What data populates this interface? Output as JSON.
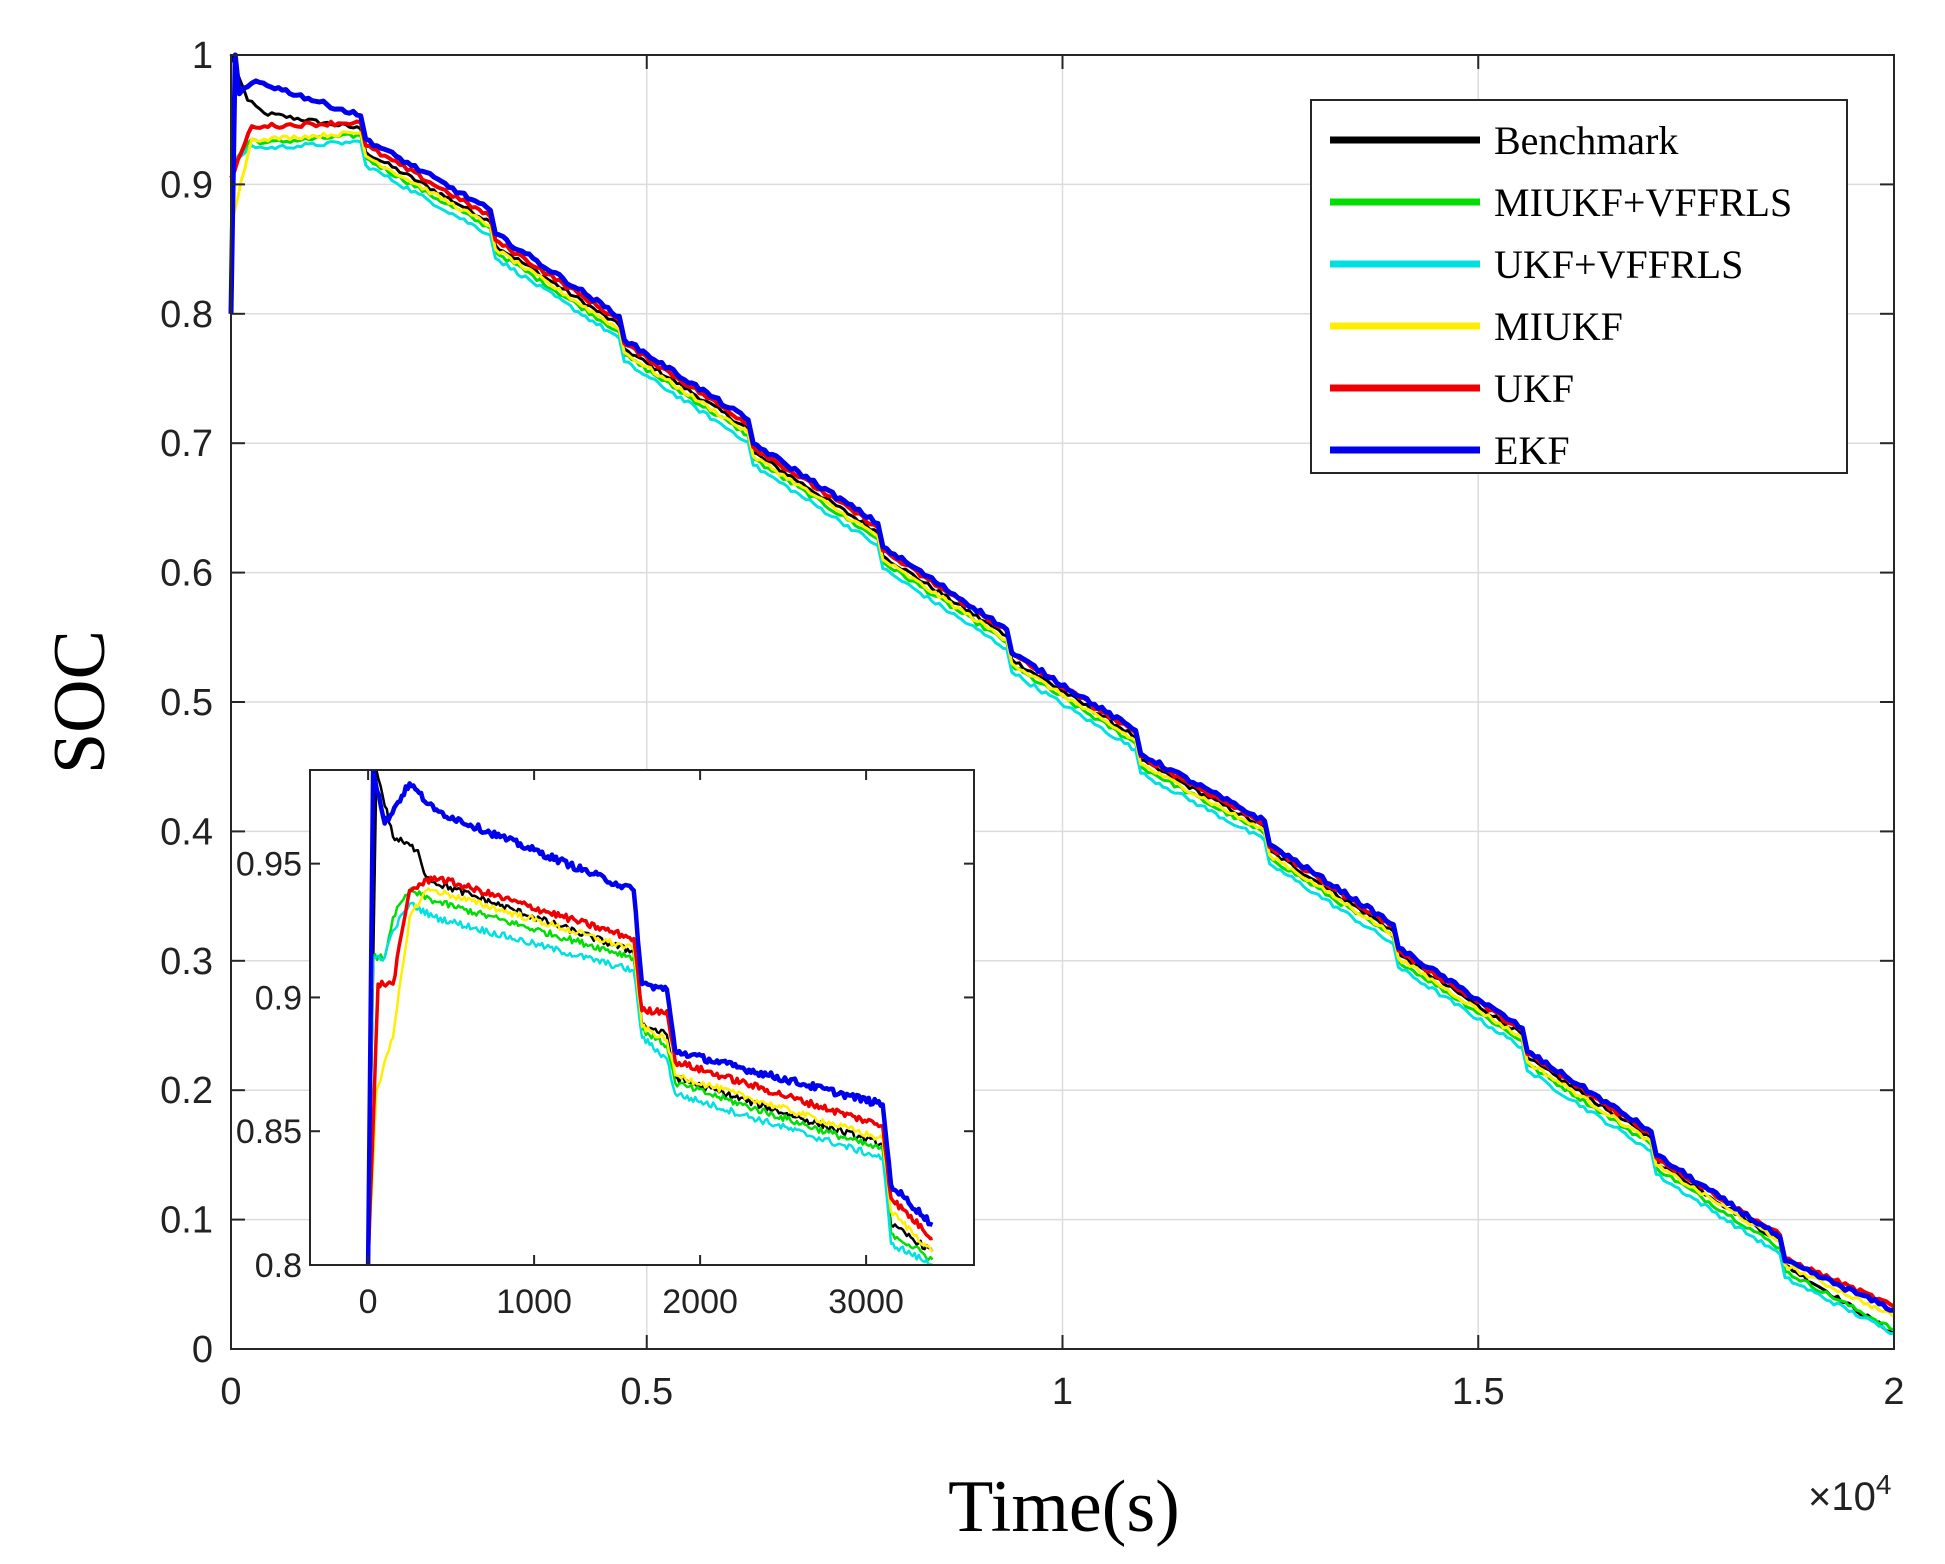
{
  "chart_data": {
    "type": "line",
    "title": "",
    "xlabel": "Time(s)",
    "ylabel": "SOC",
    "x_exponent_label": "×10",
    "x_exponent_power": "4",
    "xlim": [
      0,
      20000
    ],
    "ylim": [
      0,
      1
    ],
    "x_ticks": [
      0,
      5000,
      10000,
      15000,
      20000
    ],
    "x_tick_labels": [
      "0",
      "0.5",
      "1",
      "1.5",
      "2"
    ],
    "y_ticks": [
      0,
      0.1,
      0.2,
      0.3,
      0.4,
      0.5,
      0.6,
      0.7,
      0.8,
      0.9,
      1.0
    ],
    "y_tick_labels": [
      "0",
      "0.1",
      "0.2",
      "0.3",
      "0.4",
      "0.5",
      "0.6",
      "0.7",
      "0.8",
      "0.9",
      "1"
    ],
    "grid": true,
    "legend_position": "top-right",
    "pulse_start_times": [
      1620,
      3180,
      4730,
      6280,
      7840,
      9390,
      10940,
      12490,
      14040,
      15590,
      17140,
      18690
    ],
    "series": [
      {
        "name": "Benchmark",
        "color": "#000000",
        "points": [
          [
            0,
            1.0
          ],
          [
            200,
            0.965
          ],
          [
            400,
            0.955
          ],
          [
            1620,
            0.925
          ],
          [
            3180,
            0.853
          ],
          [
            4730,
            0.773
          ],
          [
            6280,
            0.693
          ],
          [
            7840,
            0.613
          ],
          [
            9390,
            0.533
          ],
          [
            10940,
            0.455
          ],
          [
            12490,
            0.385
          ],
          [
            14040,
            0.305
          ],
          [
            15590,
            0.225
          ],
          [
            17140,
            0.145
          ],
          [
            18690,
            0.065
          ],
          [
            20000,
            0.012
          ]
        ]
      },
      {
        "name": "MIUKF+VFFRLS",
        "color": "#00dd00",
        "points": [
          [
            0,
            0.915
          ],
          [
            250,
            0.935
          ],
          [
            400,
            0.932
          ],
          [
            1620,
            0.92
          ],
          [
            3180,
            0.848
          ],
          [
            4730,
            0.768
          ],
          [
            6280,
            0.688
          ],
          [
            7840,
            0.608
          ],
          [
            9390,
            0.528
          ],
          [
            10940,
            0.45
          ],
          [
            12490,
            0.38
          ],
          [
            14040,
            0.3
          ],
          [
            15590,
            0.22
          ],
          [
            17140,
            0.14
          ],
          [
            18690,
            0.06
          ],
          [
            20000,
            0.015
          ]
        ]
      },
      {
        "name": "UKF+VFFRLS",
        "color": "#00e0e0",
        "points": [
          [
            0,
            0.915
          ],
          [
            250,
            0.93
          ],
          [
            400,
            0.928
          ],
          [
            1620,
            0.915
          ],
          [
            3180,
            0.843
          ],
          [
            4730,
            0.763
          ],
          [
            6280,
            0.683
          ],
          [
            7840,
            0.603
          ],
          [
            9390,
            0.523
          ],
          [
            10940,
            0.445
          ],
          [
            12490,
            0.375
          ],
          [
            14040,
            0.295
          ],
          [
            15590,
            0.215
          ],
          [
            17140,
            0.135
          ],
          [
            18690,
            0.055
          ],
          [
            20000,
            0.012
          ]
        ]
      },
      {
        "name": "MIUKF",
        "color": "#ffee00",
        "points": [
          [
            0,
            0.87
          ],
          [
            250,
            0.935
          ],
          [
            400,
            0.935
          ],
          [
            1620,
            0.922
          ],
          [
            3180,
            0.85
          ],
          [
            4730,
            0.77
          ],
          [
            6280,
            0.69
          ],
          [
            7840,
            0.61
          ],
          [
            9390,
            0.53
          ],
          [
            10940,
            0.452
          ],
          [
            12490,
            0.382
          ],
          [
            14040,
            0.302
          ],
          [
            15590,
            0.222
          ],
          [
            17140,
            0.142
          ],
          [
            18690,
            0.065
          ],
          [
            20000,
            0.025
          ]
        ]
      },
      {
        "name": "UKF",
        "color": "#ee0000",
        "points": [
          [
            0,
            0.905
          ],
          [
            250,
            0.945
          ],
          [
            400,
            0.945
          ],
          [
            1620,
            0.93
          ],
          [
            3180,
            0.857
          ],
          [
            4730,
            0.777
          ],
          [
            6280,
            0.697
          ],
          [
            7840,
            0.617
          ],
          [
            9390,
            0.537
          ],
          [
            10940,
            0.458
          ],
          [
            12490,
            0.388
          ],
          [
            14040,
            0.308
          ],
          [
            15590,
            0.228
          ],
          [
            17140,
            0.148
          ],
          [
            18690,
            0.07
          ],
          [
            20000,
            0.033
          ]
        ]
      },
      {
        "name": "EKF",
        "color": "#0000ee",
        "points": [
          [
            0,
            0.8
          ],
          [
            50,
            1.0
          ],
          [
            100,
            0.97
          ],
          [
            300,
            0.98
          ],
          [
            1620,
            0.935
          ],
          [
            3180,
            0.862
          ],
          [
            4730,
            0.78
          ],
          [
            6280,
            0.7
          ],
          [
            7840,
            0.62
          ],
          [
            9390,
            0.538
          ],
          [
            10940,
            0.46
          ],
          [
            12490,
            0.39
          ],
          [
            14040,
            0.31
          ],
          [
            15590,
            0.23
          ],
          [
            17140,
            0.15
          ],
          [
            18690,
            0.068
          ],
          [
            20000,
            0.03
          ]
        ]
      }
    ],
    "inset": {
      "xlim": [
        -350,
        3650
      ],
      "ylim": [
        0.8,
        0.985
      ],
      "x_ticks": [
        0,
        1000,
        2000,
        3000
      ],
      "x_tick_labels": [
        "0",
        "1000",
        "2000",
        "3000"
      ],
      "y_ticks": [
        0.8,
        0.85,
        0.9,
        0.95
      ],
      "y_tick_labels": [
        "0.8",
        "0.85",
        "0.9",
        "0.95"
      ],
      "grid": false,
      "series": [
        {
          "name": "Benchmark",
          "color": "#000000",
          "points": [
            [
              0,
              0.8
            ],
            [
              50,
              0.985
            ],
            [
              150,
              0.96
            ],
            [
              300,
              0.955
            ],
            [
              350,
              0.945
            ],
            [
              400,
              0.943
            ],
            [
              1600,
              0.917
            ],
            [
              1650,
              0.89
            ],
            [
              1800,
              0.886
            ],
            [
              1850,
              0.87
            ],
            [
              3100,
              0.845
            ],
            [
              3150,
              0.815
            ],
            [
              3400,
              0.805
            ]
          ]
        },
        {
          "name": "MIUKF+VFFRLS",
          "color": "#00dd00",
          "points": [
            [
              0,
              0.8
            ],
            [
              30,
              0.915
            ],
            [
              100,
              0.915
            ],
            [
              150,
              0.93
            ],
            [
              250,
              0.94
            ],
            [
              400,
              0.936
            ],
            [
              1600,
              0.915
            ],
            [
              1650,
              0.888
            ],
            [
              1800,
              0.882
            ],
            [
              1850,
              0.868
            ],
            [
              3100,
              0.843
            ],
            [
              3150,
              0.812
            ],
            [
              3400,
              0.802
            ]
          ]
        },
        {
          "name": "UKF+VFFRLS",
          "color": "#00e0e0",
          "points": [
            [
              0,
              0.8
            ],
            [
              30,
              0.915
            ],
            [
              100,
              0.915
            ],
            [
              150,
              0.925
            ],
            [
              250,
              0.935
            ],
            [
              400,
              0.93
            ],
            [
              1600,
              0.91
            ],
            [
              1650,
              0.885
            ],
            [
              1800,
              0.877
            ],
            [
              1850,
              0.864
            ],
            [
              3100,
              0.84
            ],
            [
              3150,
              0.808
            ],
            [
              3400,
              0.8
            ]
          ]
        },
        {
          "name": "MIUKF",
          "color": "#ffee00",
          "points": [
            [
              0,
              0.8
            ],
            [
              50,
              0.865
            ],
            [
              150,
              0.885
            ],
            [
              250,
              0.93
            ],
            [
              350,
              0.94
            ],
            [
              400,
              0.94
            ],
            [
              1600,
              0.918
            ],
            [
              1650,
              0.889
            ],
            [
              1800,
              0.884
            ],
            [
              1850,
              0.871
            ],
            [
              3100,
              0.847
            ],
            [
              3150,
              0.82
            ],
            [
              3400,
              0.805
            ]
          ]
        },
        {
          "name": "UKF",
          "color": "#ee0000",
          "points": [
            [
              0,
              0.8
            ],
            [
              60,
              0.905
            ],
            [
              150,
              0.905
            ],
            [
              250,
              0.94
            ],
            [
              400,
              0.945
            ],
            [
              1600,
              0.922
            ],
            [
              1650,
              0.895
            ],
            [
              1800,
              0.895
            ],
            [
              1850,
              0.876
            ],
            [
              3100,
              0.852
            ],
            [
              3150,
              0.825
            ],
            [
              3400,
              0.81
            ]
          ]
        },
        {
          "name": "EKF",
          "color": "#0000ee",
          "points": [
            [
              0,
              0.8
            ],
            [
              30,
              0.985
            ],
            [
              100,
              0.965
            ],
            [
              250,
              0.98
            ],
            [
              400,
              0.97
            ],
            [
              1600,
              0.94
            ],
            [
              1650,
              0.905
            ],
            [
              1800,
              0.903
            ],
            [
              1850,
              0.88
            ],
            [
              3100,
              0.86
            ],
            [
              3150,
              0.83
            ],
            [
              3400,
              0.815
            ]
          ]
        }
      ]
    }
  }
}
